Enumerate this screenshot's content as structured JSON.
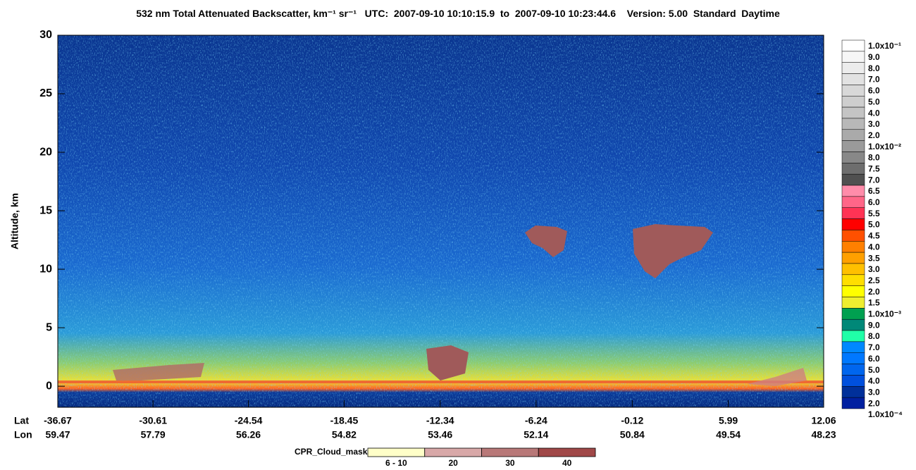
{
  "chart_data": {
    "type": "curtain",
    "title": "532 nm Total Attenuated Backscatter, km⁻¹ sr⁻¹",
    "subtitle": "UTC:  2007-09-10 10:10:15.9  to  2007-09-10 10:23:44.6    Version: 5.00  Standard  Daytime",
    "ylabel": "Altitude, km",
    "ylim": [
      -1.8,
      30
    ],
    "yticks": [
      0,
      5,
      10,
      15,
      20,
      25,
      30
    ],
    "x_row_labels": [
      "Lat",
      "Lon"
    ],
    "xlim": [
      -36.67,
      12.06
    ],
    "xticks": [
      -36.67,
      -30.61,
      -24.54,
      -18.45,
      -12.34,
      -6.24,
      -0.12,
      5.99,
      12.06
    ],
    "lon_labels": [
      59.47,
      57.79,
      56.26,
      54.82,
      53.46,
      52.14,
      50.84,
      49.54,
      48.23
    ],
    "colorbar": {
      "labels": [
        "1.0x10⁻¹",
        "9.0",
        "8.0",
        "7.0",
        "6.0",
        "5.0",
        "4.0",
        "3.0",
        "2.0",
        "1.0x10⁻²",
        "8.0",
        "7.5",
        "7.0",
        "6.5",
        "6.0",
        "5.5",
        "5.0",
        "4.5",
        "4.0",
        "3.5",
        "3.0",
        "2.5",
        "2.0",
        "1.5",
        "1.0x10⁻³",
        "9.0",
        "8.0",
        "7.0",
        "6.0",
        "5.0",
        "4.0",
        "3.0",
        "2.0",
        "1.0x10⁻⁴"
      ],
      "colors": [
        "#ffffff",
        "#f6f6f6",
        "#ececec",
        "#e2e2e2",
        "#d8d8d8",
        "#cecece",
        "#c4c4c4",
        "#b8b8b8",
        "#aaaaaa",
        "#9a9a9a",
        "#888888",
        "#6e6e6e",
        "#505050",
        "#ff8caa",
        "#ff6688",
        "#ff3355",
        "#ff0000",
        "#ff5000",
        "#ff8000",
        "#ffa000",
        "#ffc000",
        "#ffde00",
        "#ffff00",
        "#eeee30",
        "#00a050",
        "#008878",
        "#20ffa8",
        "#0088ff",
        "#0078ff",
        "#0066ee",
        "#0050dd",
        "#00309a",
        "#0020a0"
      ]
    },
    "cpr_legend": {
      "title": "CPR_Cloud_mask",
      "labels": [
        "6 - 10",
        "20",
        "30",
        "40"
      ],
      "colors": [
        "#ffffc8",
        "#d8a8a8",
        "#b87878",
        "#a04848"
      ]
    }
  }
}
